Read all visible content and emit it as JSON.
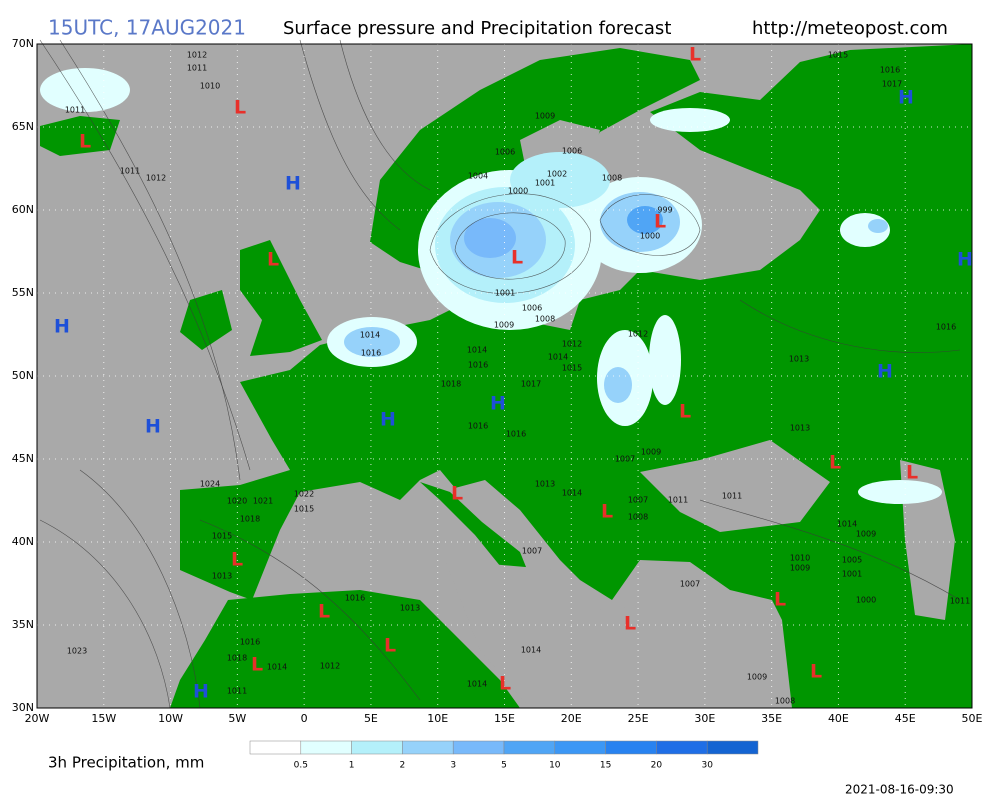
{
  "header": {
    "time": "15UTC, 17AUG2021",
    "title": "Surface pressure and Precipitation forecast",
    "url": "http://meteopost.com"
  },
  "map": {
    "sea_color": "#a9a9a9",
    "land_color": "#009600",
    "lat_labels": [
      "70N",
      "65N",
      "60N",
      "55N",
      "50N",
      "45N",
      "40N",
      "35N",
      "30N"
    ],
    "lon_labels": [
      "20W",
      "15W",
      "10W",
      "5W",
      "0",
      "5E",
      "10E",
      "15E",
      "20E",
      "25E",
      "30E",
      "35E",
      "40E",
      "45E",
      "50E"
    ],
    "pressure_centers": [
      {
        "label": "L",
        "color": "#e8302a"
      },
      {
        "label": "L",
        "color": "#e8302a"
      },
      {
        "label": "L",
        "color": "#e8302a"
      },
      {
        "label": "L",
        "color": "#e8302a"
      },
      {
        "label": "L",
        "color": "#e8302a"
      },
      {
        "label": "L",
        "color": "#e8302a"
      },
      {
        "label": "L",
        "color": "#e8302a"
      },
      {
        "label": "L",
        "color": "#e8302a"
      },
      {
        "label": "L",
        "color": "#e8302a"
      },
      {
        "label": "L",
        "color": "#e8302a"
      },
      {
        "label": "L",
        "color": "#e8302a"
      },
      {
        "label": "L",
        "color": "#e8302a"
      },
      {
        "label": "L",
        "color": "#e8302a"
      },
      {
        "label": "L",
        "color": "#e8302a"
      },
      {
        "label": "L",
        "color": "#e8302a"
      },
      {
        "label": "L",
        "color": "#e8302a"
      },
      {
        "label": "L",
        "color": "#e8302a"
      },
      {
        "label": "L",
        "color": "#e8302a"
      },
      {
        "label": "L",
        "color": "#e8302a"
      },
      {
        "label": "H",
        "color": "#1e50d8"
      },
      {
        "label": "H",
        "color": "#1e50d8"
      },
      {
        "label": "H",
        "color": "#1e50d8"
      },
      {
        "label": "H",
        "color": "#1e50d8"
      },
      {
        "label": "H",
        "color": "#1e50d8"
      },
      {
        "label": "H",
        "color": "#1e50d8"
      },
      {
        "label": "H",
        "color": "#1e50d8"
      },
      {
        "label": "H",
        "color": "#1e50d8"
      },
      {
        "label": "H",
        "color": "#1e50d8"
      }
    ],
    "isobar_labels": [
      "1012",
      "1011",
      "1010",
      "1011",
      "1011",
      "1012",
      "1015",
      "1016",
      "1017",
      "1009",
      "1006",
      "1006",
      "1004",
      "1002",
      "1001",
      "1000",
      "1008",
      "999",
      "1000",
      "1001",
      "1006",
      "1008",
      "1009",
      "1014",
      "1016",
      "1014",
      "1016",
      "1012",
      "1014",
      "1015",
      "1018",
      "1017",
      "1012",
      "1013",
      "1016",
      "1016",
      "1016",
      "1013",
      "1007",
      "1009",
      "1024",
      "1020",
      "1021",
      "1018",
      "1022",
      "1015",
      "1015",
      "1013",
      "1014",
      "1009",
      "1010",
      "1009",
      "1005",
      "1001",
      "1007",
      "1000",
      "1011",
      "1016",
      "1013",
      "1014",
      "1014",
      "1023",
      "1016",
      "1018",
      "1014",
      "1012",
      "1011",
      "1009",
      "1008",
      "1011",
      "1011",
      "1007",
      "1008",
      "1014",
      "1013",
      "1007"
    ]
  },
  "legend": {
    "title": "3h Precipitation, mm",
    "ticks": [
      "0.5",
      "1",
      "2",
      "3",
      "5",
      "10",
      "15",
      "20",
      "30"
    ],
    "colors": [
      "#ffffff",
      "#e1ffff",
      "#b4f0fa",
      "#96d2fa",
      "#78b9fa",
      "#50a5f5",
      "#3c97f5",
      "#2882f0",
      "#1f6ee6",
      "#1464d2"
    ]
  },
  "timestamp": "2021-08-16-09:30"
}
